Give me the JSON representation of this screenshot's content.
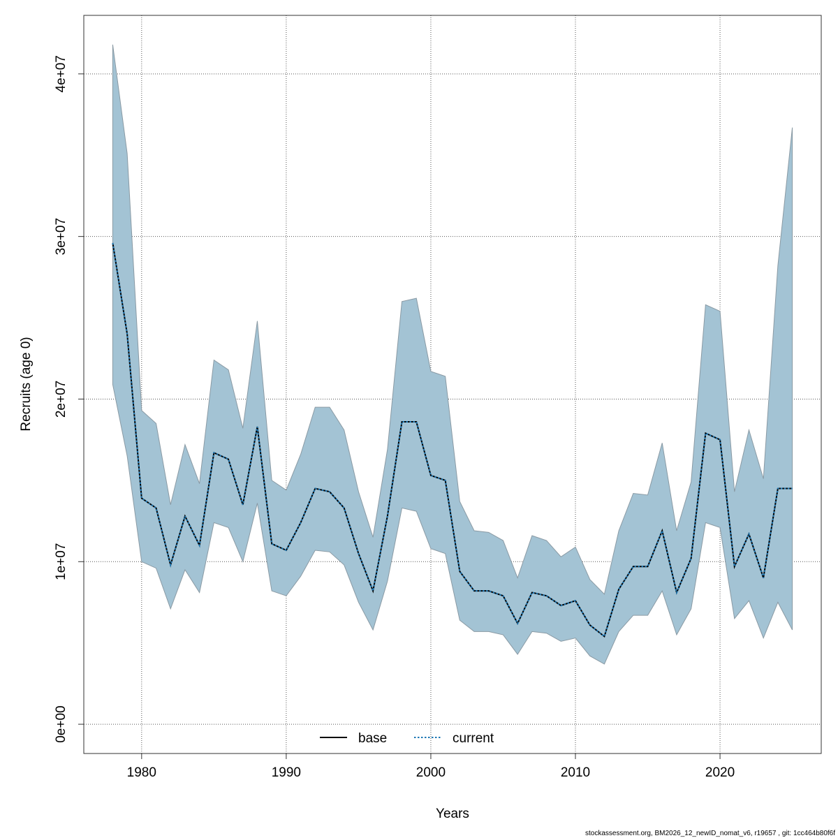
{
  "chart_data": {
    "type": "line",
    "xlabel": "Years",
    "ylabel": "Recruits (age 0)",
    "xlim": [
      1976,
      2027
    ],
    "ylim": [
      -1800000,
      43600000
    ],
    "grid": true,
    "x_ticks": [
      1980,
      1990,
      2000,
      2010,
      2020
    ],
    "x_tick_labels": [
      "1980",
      "1990",
      "2000",
      "2010",
      "2020"
    ],
    "y_ticks": [
      0,
      10000000,
      20000000,
      30000000,
      40000000
    ],
    "y_tick_labels": [
      "0e+00",
      "1e+07",
      "2e+07",
      "3e+07",
      "4e+07"
    ],
    "legend_placement": "bottom-center",
    "x": [
      1978,
      1979,
      1980,
      1981,
      1982,
      1983,
      1984,
      1985,
      1986,
      1987,
      1988,
      1989,
      1990,
      1991,
      1992,
      1993,
      1994,
      1995,
      1996,
      1997,
      1998,
      1999,
      2000,
      2001,
      2002,
      2003,
      2004,
      2005,
      2006,
      2007,
      2008,
      2009,
      2010,
      2011,
      2012,
      2013,
      2014,
      2015,
      2016,
      2017,
      2018,
      2019,
      2020,
      2021,
      2022,
      2023,
      2024,
      2025
    ],
    "units_multiplier": 1000000,
    "series": [
      {
        "name": "base",
        "style": "solid",
        "color": "#000000",
        "values": [
          29.6,
          24.0,
          13.9,
          13.3,
          9.8,
          12.8,
          11.0,
          16.7,
          16.3,
          13.5,
          18.3,
          11.1,
          10.7,
          12.4,
          14.5,
          14.3,
          13.3,
          10.5,
          8.2,
          12.8,
          18.6,
          18.6,
          15.3,
          15.0,
          9.4,
          8.2,
          8.2,
          7.9,
          6.2,
          8.1,
          7.9,
          7.3,
          7.6,
          6.1,
          5.4,
          8.3,
          9.7,
          9.7,
          11.9,
          8.1,
          10.2,
          17.9,
          17.5,
          9.7,
          11.7,
          9.0,
          14.5,
          14.5
        ]
      },
      {
        "name": "current",
        "style": "dotted",
        "color": "#1f78b4",
        "values": [
          29.6,
          24.0,
          13.9,
          13.3,
          9.8,
          12.8,
          11.0,
          16.7,
          16.3,
          13.5,
          18.3,
          11.1,
          10.7,
          12.4,
          14.5,
          14.3,
          13.3,
          10.5,
          8.2,
          12.8,
          18.6,
          18.6,
          15.3,
          15.0,
          9.4,
          8.2,
          8.2,
          7.9,
          6.2,
          8.1,
          7.9,
          7.3,
          7.6,
          6.1,
          5.4,
          8.3,
          9.7,
          9.7,
          11.9,
          8.1,
          10.2,
          17.9,
          17.5,
          9.7,
          11.7,
          9.0,
          14.5,
          14.5
        ]
      }
    ],
    "confidence_band": {
      "color": "#a3c3d4",
      "upper": [
        41.8,
        35.1,
        19.3,
        18.5,
        13.5,
        17.2,
        14.8,
        22.4,
        21.8,
        18.2,
        24.8,
        15.0,
        14.4,
        16.6,
        19.5,
        19.5,
        18.1,
        14.3,
        11.5,
        16.9,
        26.0,
        26.2,
        21.7,
        21.4,
        13.7,
        11.9,
        11.8,
        11.3,
        9.0,
        11.6,
        11.3,
        10.3,
        10.9,
        8.9,
        8.0,
        11.9,
        14.2,
        14.1,
        17.3,
        11.9,
        14.9,
        25.8,
        25.4,
        14.3,
        18.1,
        15.1,
        28.2,
        36.7
      ],
      "lower": [
        20.9,
        16.5,
        10.0,
        9.6,
        7.1,
        9.5,
        8.1,
        12.4,
        12.1,
        10.0,
        13.6,
        8.2,
        7.9,
        9.1,
        10.7,
        10.6,
        9.8,
        7.5,
        5.8,
        8.8,
        13.3,
        13.1,
        10.8,
        10.5,
        6.4,
        5.7,
        5.7,
        5.5,
        4.3,
        5.7,
        5.6,
        5.1,
        5.3,
        4.2,
        3.7,
        5.7,
        6.7,
        6.7,
        8.2,
        5.5,
        7.1,
        12.4,
        12.1,
        6.5,
        7.6,
        5.3,
        7.5,
        5.8
      ]
    }
  },
  "footer": "stockassessment.org, BM2026_12_newID_nomat_v6, r19657 , git: 1cc464b80f6f"
}
